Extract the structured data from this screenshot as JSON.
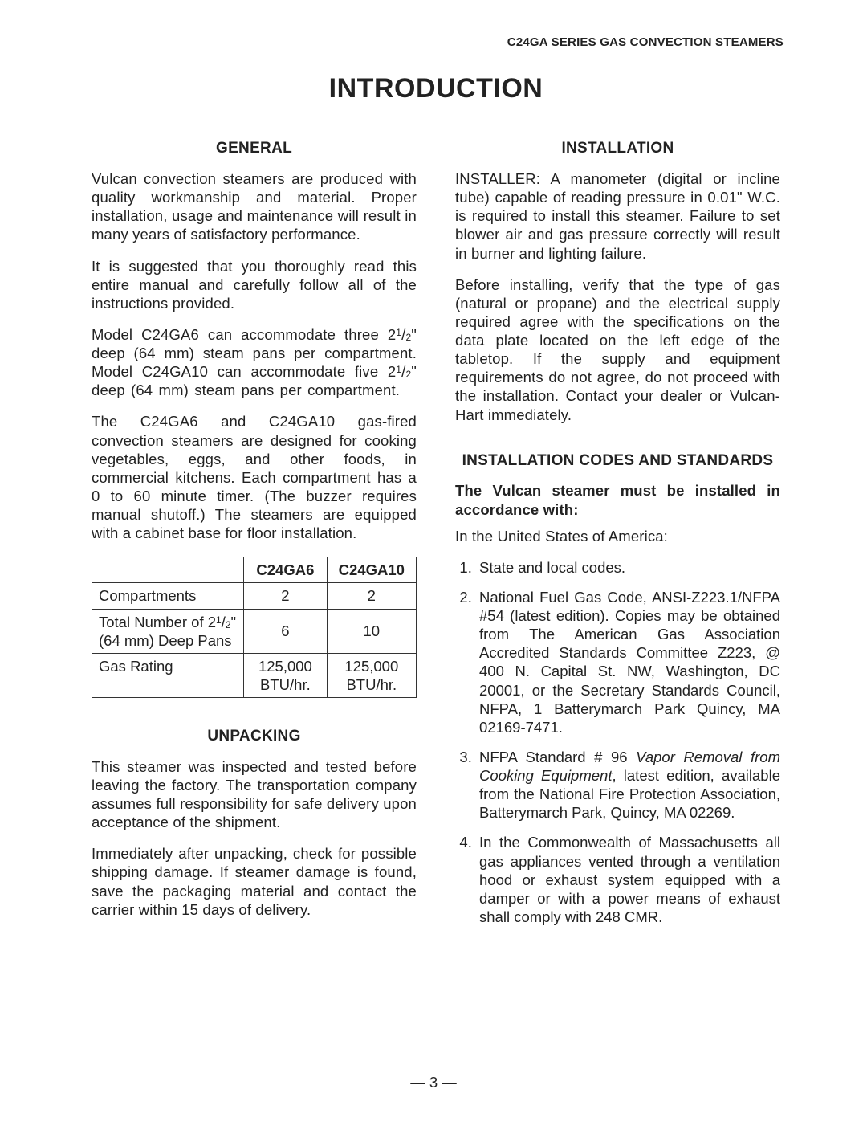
{
  "running_header": "C24GA SERIES GAS CONVECTION STEAMERS",
  "main_title": "INTRODUCTION",
  "page_number": "— 3 —",
  "colors": {
    "text": "#222222",
    "background": "#ffffff",
    "rule": "#222222",
    "table_border": "#333333"
  },
  "left": {
    "general": {
      "heading": "GENERAL",
      "p1": "Vulcan convection steamers are produced with quality workmanship and material. Proper installation, usage and maintenance will result in many years of satisfactory performance.",
      "p2": "It is suggested that you thoroughly read this entire manual and carefully follow all of the instructions provided.",
      "p3_a": "Model C24GA6 can accommodate three 2",
      "p3_b": "\" deep (64 mm) steam pans per compartment. Model C24GA10 can accommodate five 2",
      "p3_c": "\" deep (64 mm) steam pans per compartment.",
      "p4": "The C24GA6 and C24GA10 gas-fired convection steamers are designed for cooking vegetables, eggs, and other foods, in commercial kitchens. Each compartment has a 0 to 60 minute timer. (The buzzer requires manual shutoff.) The steamers are equipped with a cabinet base for floor installation."
    },
    "table": {
      "headers": {
        "c1": "",
        "c2": "C24GA6",
        "c3": "C24GA10"
      },
      "row1": {
        "label": "Compartments",
        "c2": "2",
        "c3": "2"
      },
      "row2": {
        "label_a": "Total Number of 2",
        "label_b": "\" (64 mm) Deep Pans",
        "c2": "6",
        "c3": "10"
      },
      "row3": {
        "label": "Gas Rating",
        "c2": "125,000 BTU/hr.",
        "c3": "125,000 BTU/hr."
      }
    },
    "unpacking": {
      "heading": "UNPACKING",
      "p1": "This steamer was inspected and tested before leaving the factory. The transportation company assumes full responsibility for safe delivery upon acceptance of the shipment.",
      "p2": "Immediately after unpacking, check for possible shipping damage. If steamer damage is found, save the packaging material and contact the carrier within 15 days of delivery."
    }
  },
  "right": {
    "installation": {
      "heading": "INSTALLATION",
      "p1": "INSTALLER: A manometer (digital or incline tube) capable of reading pressure in 0.01\" W.C. is required to install this steamer. Failure to set blower air and gas pressure correctly will result in burner and lighting failure.",
      "p2": "Before installing, verify that the type of gas (natural or propane) and the electrical supply required agree with the specifications on the data plate located on the left edge of the tabletop. If the supply and equipment requirements do not agree, do not proceed with the installation. Contact your dealer or Vulcan-Hart immediately."
    },
    "codes": {
      "heading": "INSTALLATION CODES AND STANDARDS",
      "bold_intro": "The Vulcan steamer must be installed in accordance with:",
      "region_intro": "In the United States of America:",
      "items": {
        "i1": "State and local codes.",
        "i2": "National Fuel Gas Code, ANSI-Z223.1/NFPA #54 (latest edition). Copies may be obtained from The American Gas Association Accredited Standards Committee Z223, @ 400 N. Capital St. NW, Washington, DC 20001, or the Secretary Standards Council, NFPA, 1 Batterymarch Park Quincy, MA 02169-7471.",
        "i3_a": "NFPA Standard # 96 ",
        "i3_italic": "Vapor Removal from Cooking Equipment",
        "i3_b": ", latest edition, available from the National Fire Protection Association, Batterymarch Park, Quincy, MA 02269.",
        "i4": "In the Commonwealth of Massachusetts all gas appliances vented through a ventilation hood or exhaust system equipped with a damper or with a power means of exhaust shall comply with 248 CMR."
      }
    }
  },
  "fraction": {
    "num": "1",
    "den": "2"
  }
}
